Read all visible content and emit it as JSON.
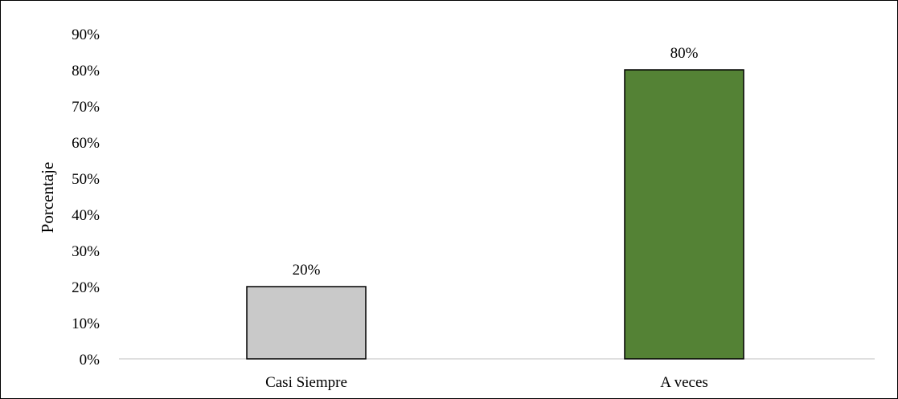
{
  "chart_data": {
    "type": "bar",
    "categories": [
      "Casi Siempre",
      "A veces"
    ],
    "values": [
      20,
      80
    ],
    "data_labels": [
      "20%",
      "80%"
    ],
    "colors": [
      "#c9c9c9",
      "#548235"
    ],
    "ylabel": "Porcentaje",
    "xlabel": "",
    "ylim": [
      0,
      90
    ],
    "yticks": [
      "0%",
      "10%",
      "20%",
      "30%",
      "40%",
      "50%",
      "60%",
      "70%",
      "80%",
      "90%"
    ],
    "grid": false,
    "legend": "none"
  }
}
